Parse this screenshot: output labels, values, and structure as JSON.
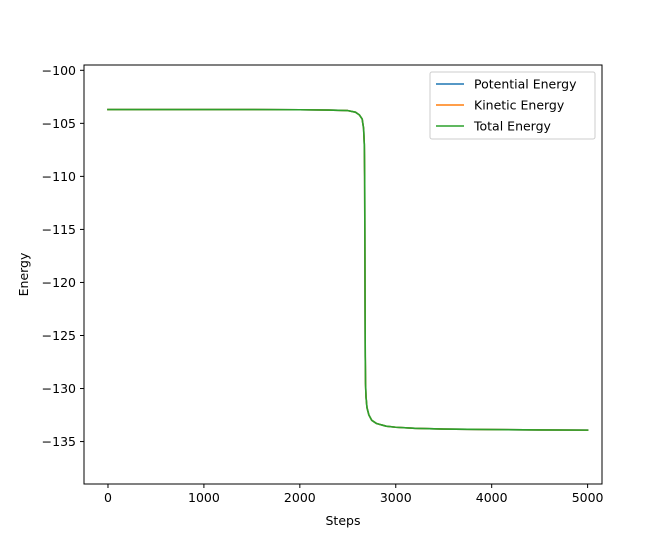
{
  "chart_data": {
    "type": "line",
    "title": "",
    "xlabel": "Steps",
    "ylabel": "Energy",
    "xlim": [
      -250,
      5150
    ],
    "ylim": [
      -139,
      -99.5
    ],
    "xticks": [
      0,
      1000,
      2000,
      3000,
      4000,
      5000
    ],
    "xtick_labels": [
      "0",
      "1000",
      "2000",
      "3000",
      "4000",
      "5000"
    ],
    "yticks": [
      -100,
      -105,
      -110,
      -115,
      -120,
      -125,
      -130,
      -135
    ],
    "ytick_labels": [
      "−100",
      "−105",
      "−110",
      "−115",
      "−120",
      "−125",
      "−130",
      "−135"
    ],
    "grid": false,
    "legend_position": "top-right",
    "series": [
      {
        "name": "Potential Energy",
        "color": "#1f77b4",
        "x": [
          0,
          500,
          1000,
          1500,
          2000,
          2300,
          2500,
          2580,
          2620,
          2650,
          2665,
          2672,
          2676,
          2678,
          2680,
          2682,
          2685,
          2690,
          2700,
          2720,
          2750,
          2800,
          2900,
          3000,
          3200,
          3500,
          4000,
          4500,
          5000
        ],
        "y": [
          -103.7,
          -103.7,
          -103.7,
          -103.7,
          -103.72,
          -103.75,
          -103.8,
          -103.95,
          -104.2,
          -104.6,
          -105.5,
          -107,
          -110,
          -116,
          -122,
          -127,
          -129.5,
          -130.8,
          -131.8,
          -132.5,
          -133.0,
          -133.3,
          -133.55,
          -133.65,
          -133.75,
          -133.82,
          -133.87,
          -133.9,
          -133.92
        ]
      },
      {
        "name": "Kinetic Energy",
        "color": "#ff7f0e",
        "x": [
          0,
          500,
          1000,
          1500,
          2000,
          2300,
          2500,
          2580,
          2620,
          2650,
          2665,
          2672,
          2676,
          2678,
          2680,
          2682,
          2685,
          2690,
          2700,
          2720,
          2750,
          2800,
          2900,
          3000,
          3200,
          3500,
          4000,
          4500,
          5000
        ],
        "y": [
          -103.7,
          -103.7,
          -103.7,
          -103.7,
          -103.72,
          -103.75,
          -103.8,
          -103.95,
          -104.2,
          -104.6,
          -105.5,
          -107,
          -110,
          -116,
          -122,
          -127,
          -129.5,
          -130.8,
          -131.8,
          -132.5,
          -133.0,
          -133.3,
          -133.55,
          -133.65,
          -133.75,
          -133.82,
          -133.87,
          -133.9,
          -133.92
        ]
      },
      {
        "name": "Total Energy",
        "color": "#2ca02c",
        "x": [
          0,
          500,
          1000,
          1500,
          2000,
          2300,
          2500,
          2580,
          2620,
          2650,
          2665,
          2672,
          2676,
          2678,
          2680,
          2682,
          2685,
          2690,
          2700,
          2720,
          2750,
          2800,
          2900,
          3000,
          3200,
          3500,
          4000,
          4500,
          5000
        ],
        "y": [
          -103.7,
          -103.7,
          -103.7,
          -103.7,
          -103.72,
          -103.75,
          -103.8,
          -103.95,
          -104.2,
          -104.6,
          -105.5,
          -107,
          -110,
          -116,
          -122,
          -127,
          -129.5,
          -130.8,
          -131.8,
          -132.5,
          -133.0,
          -133.3,
          -133.55,
          -133.65,
          -133.75,
          -133.82,
          -133.87,
          -133.9,
          -133.92
        ]
      }
    ]
  }
}
